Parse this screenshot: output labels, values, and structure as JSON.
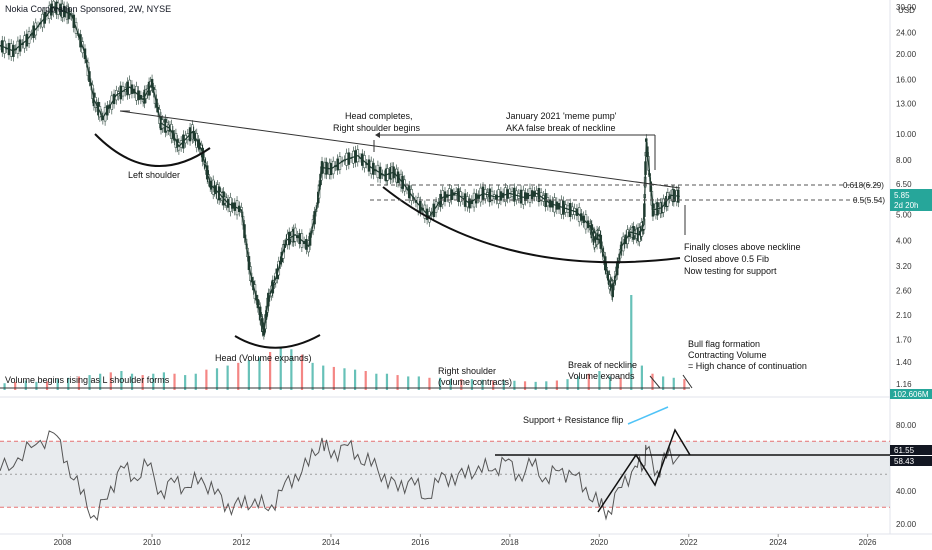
{
  "title": "Nokia Corporation Sponsored, 2W, NYSE",
  "currency": "USD",
  "colors": {
    "up": "#26a69a",
    "down": "#ef5350",
    "candle": "#1e3a2f",
    "line": "#333333",
    "rsi": "#555555",
    "band": "#d9dde3",
    "price_badge": "#26a69a",
    "axis_badge": "#131722",
    "fib": "#555555"
  },
  "price_axis": {
    "scale": "log",
    "ticks": [
      "30.00",
      "24.00",
      "20.00",
      "16.00",
      "13.00",
      "10.00",
      "8.00",
      "6.50",
      "5.00",
      "4.00",
      "3.20",
      "2.60",
      "2.10",
      "1.70",
      "1.40",
      "1.16"
    ],
    "last_price": "5.85",
    "countdown": "2d 20h",
    "volume_label": "102.606M"
  },
  "rsi_axis": {
    "ticks": [
      "80.00",
      "40.00",
      "20.00"
    ],
    "value1": "61.55",
    "value2": "58.43"
  },
  "x_axis": {
    "ticks": [
      "2008",
      "2010",
      "2012",
      "2014",
      "2016",
      "2018",
      "2020",
      "2022",
      "2024",
      "2026"
    ]
  },
  "fib_levels": [
    {
      "label": "0.618(6.29)",
      "price": 6.29
    },
    {
      "label": "0.5(5.54)",
      "price": 5.54
    }
  ],
  "annotations": {
    "left_shoulder": "Left shoulder",
    "head": "Head (Volume expands)",
    "head_completes_1": "Head completes,",
    "head_completes_2": "Right shoulder begins",
    "meme_1": "January 2021 'meme pump'",
    "meme_2": "AKA false break of neckline",
    "closes_1": "Finally closes above neckline",
    "closes_2": "Closed above 0.5 Fib",
    "closes_3": "Now testing for support",
    "bull_1": "Bull flag formation",
    "bull_2": "Contracting Volume",
    "bull_3": "= High chance of continuation",
    "break_1": "Break of neckline",
    "break_2": "Volume expands",
    "right_shoulder_1": "Right shoulder",
    "right_shoulder_2": "(volume contracts)",
    "vol_rising": "Volume begins rising as L shoulder forms",
    "sr_flip": "Support + Resistance flip"
  },
  "chart_data": {
    "type": "line",
    "title": "Nokia Corporation Sponsored, 2W, NYSE",
    "xlabel": "",
    "ylabel": "",
    "y_scale": "log",
    "ylim": [
      1.1,
      31
    ],
    "xlim": [
      2006.6,
      2026.5
    ],
    "series": [
      {
        "name": "",
        "x": [
          2006.6,
          2006.9,
          2007.2,
          2007.5,
          2007.8,
          2008.0,
          2008.2,
          2008.5,
          2008.7,
          2008.9,
          2009.2,
          2009.5,
          2009.8,
          2010.0,
          2010.2,
          2010.4,
          2010.6,
          2010.9,
          2011.1,
          2011.3,
          2011.5,
          2011.7,
          2012.0,
          2012.2,
          2012.4,
          2012.5,
          2012.6,
          2012.8,
          2013.0,
          2013.2,
          2013.5,
          2013.7,
          2013.8,
          2014.0,
          2014.3,
          2014.6,
          2014.9,
          2015.2,
          2015.4,
          2015.6,
          2015.9,
          2016.2,
          2016.5,
          2016.8,
          2017.1,
          2017.4,
          2017.7,
          2018.0,
          2018.3,
          2018.6,
          2018.9,
          2019.2,
          2019.5,
          2019.8,
          2019.9,
          2020.0,
          2020.2,
          2020.3,
          2020.5,
          2020.7,
          2020.9,
          2021.0,
          2021.05,
          2021.2,
          2021.4,
          2021.6,
          2021.8
        ],
        "values": [
          21.5,
          20.5,
          22.5,
          26.0,
          30.0,
          29.0,
          28.0,
          20.0,
          13.5,
          11.5,
          14.0,
          15.0,
          13.5,
          15.5,
          11.0,
          10.5,
          9.0,
          10.2,
          8.8,
          6.5,
          6.0,
          5.5,
          5.2,
          3.0,
          2.2,
          1.8,
          2.4,
          3.0,
          4.0,
          4.2,
          3.8,
          5.5,
          7.5,
          7.4,
          8.0,
          8.3,
          7.5,
          7.0,
          7.2,
          6.6,
          5.6,
          4.9,
          5.8,
          6.0,
          5.5,
          6.0,
          5.8,
          6.0,
          5.8,
          6.0,
          5.5,
          5.3,
          5.1,
          4.5,
          4.0,
          4.2,
          2.9,
          2.6,
          3.8,
          4.3,
          4.2,
          4.6,
          9.5,
          5.2,
          5.3,
          5.9,
          5.85
        ]
      }
    ],
    "volume": {
      "values": [
        0.25,
        0.3,
        0.35,
        0.3,
        0.32,
        0.4,
        0.45,
        0.5,
        0.55,
        0.6,
        0.65,
        0.7,
        0.6,
        0.55,
        0.6,
        0.65,
        0.6,
        0.55,
        0.6,
        0.75,
        0.8,
        0.9,
        1.0,
        1.1,
        1.2,
        1.4,
        1.6,
        1.5,
        1.3,
        1.0,
        0.9,
        0.85,
        0.8,
        0.75,
        0.7,
        0.6,
        0.6,
        0.55,
        0.5,
        0.5,
        0.45,
        0.45,
        0.4,
        0.4,
        0.4,
        0.38,
        0.35,
        0.35,
        0.34,
        0.32,
        0.3,
        0.32,
        0.35,
        0.4,
        0.5,
        0.6,
        0.7,
        0.5,
        0.45,
        3.5,
        0.9,
        0.6,
        0.5,
        0.45,
        0.4
      ]
    },
    "rsi": {
      "ylim": [
        15,
        95
      ],
      "band": [
        30,
        70
      ],
      "x": [
        2006.6,
        2007.0,
        2007.4,
        2007.8,
        2008.1,
        2008.4,
        2008.7,
        2009.0,
        2009.3,
        2009.6,
        2009.9,
        2010.2,
        2010.5,
        2010.8,
        2011.1,
        2011.4,
        2011.7,
        2012.0,
        2012.3,
        2012.6,
        2012.9,
        2013.2,
        2013.5,
        2013.8,
        2014.0,
        2014.3,
        2014.6,
        2014.9,
        2015.2,
        2015.5,
        2015.8,
        2016.1,
        2016.4,
        2016.7,
        2017.0,
        2017.3,
        2017.6,
        2017.9,
        2018.2,
        2018.5,
        2018.8,
        2019.1,
        2019.4,
        2019.7,
        2020.0,
        2020.2,
        2020.5,
        2020.8,
        2021.0,
        2021.05,
        2021.3,
        2021.5,
        2021.8
      ],
      "values": [
        52,
        60,
        68,
        75,
        58,
        38,
        25,
        35,
        55,
        48,
        55,
        40,
        45,
        42,
        48,
        38,
        32,
        30,
        35,
        28,
        40,
        50,
        55,
        72,
        60,
        68,
        62,
        55,
        50,
        40,
        48,
        35,
        45,
        50,
        48,
        55,
        52,
        58,
        50,
        55,
        48,
        52,
        50,
        42,
        30,
        28,
        42,
        55,
        55,
        65,
        52,
        60,
        61.55
      ]
    }
  }
}
